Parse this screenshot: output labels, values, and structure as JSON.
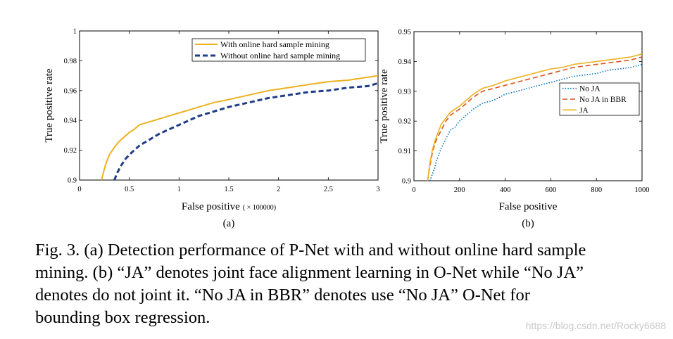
{
  "chart_data": [
    {
      "type": "line",
      "panel": "(a)",
      "xlabel": "False positive",
      "xlabel_unit": "( × 100000)",
      "ylabel": "True positive rate",
      "xlim": [
        0,
        3
      ],
      "ylim": [
        0.9,
        1
      ],
      "xticks": [
        "0",
        "0.5",
        "1",
        "1.5",
        "2",
        "2.5",
        "3"
      ],
      "yticks": [
        "0.9",
        "0.92",
        "0.94",
        "0.96",
        "0.98",
        "1"
      ],
      "legend_position": "top-right",
      "series": [
        {
          "name": "With online hard sample mining",
          "color": "#EDB120",
          "style": "solid",
          "x": [
            0.22,
            0.26,
            0.3,
            0.35,
            0.4,
            0.45,
            0.5,
            0.55,
            0.6,
            0.7,
            0.8,
            0.9,
            1.0,
            1.1,
            1.2,
            1.35,
            1.5,
            1.7,
            1.9,
            2.1,
            2.3,
            2.5,
            2.7,
            2.9,
            3.0
          ],
          "y": [
            0.9,
            0.91,
            0.917,
            0.922,
            0.926,
            0.929,
            0.932,
            0.934,
            0.937,
            0.939,
            0.941,
            0.943,
            0.945,
            0.947,
            0.949,
            0.952,
            0.954,
            0.957,
            0.96,
            0.962,
            0.964,
            0.966,
            0.967,
            0.969,
            0.97
          ]
        },
        {
          "name": "Without online hard sample mining",
          "color": "#1F3C88",
          "style": "dashed",
          "x": [
            0.35,
            0.38,
            0.42,
            0.46,
            0.5,
            0.55,
            0.6,
            0.7,
            0.8,
            0.9,
            1.0,
            1.1,
            1.2,
            1.35,
            1.5,
            1.7,
            1.9,
            2.1,
            2.3,
            2.5,
            2.7,
            2.9,
            3.0
          ],
          "y": [
            0.9,
            0.905,
            0.91,
            0.914,
            0.917,
            0.92,
            0.923,
            0.927,
            0.931,
            0.934,
            0.937,
            0.94,
            0.943,
            0.946,
            0.949,
            0.952,
            0.955,
            0.957,
            0.959,
            0.96,
            0.962,
            0.963,
            0.965
          ]
        }
      ]
    },
    {
      "type": "line",
      "panel": "(b)",
      "xlabel": "False positive",
      "ylabel": "True positive rate",
      "xlim": [
        0,
        1000
      ],
      "ylim": [
        0.9,
        0.95
      ],
      "xticks": [
        "0",
        "200",
        "400",
        "600",
        "800",
        "1000"
      ],
      "yticks": [
        "0.9",
        "0.91",
        "0.92",
        "0.93",
        "0.94",
        "0.95"
      ],
      "legend_position": "center-right",
      "series": [
        {
          "name": "No JA",
          "color": "#0072BD",
          "style": "dotted",
          "x": [
            70,
            80,
            90,
            100,
            120,
            140,
            160,
            180,
            200,
            230,
            260,
            300,
            350,
            400,
            450,
            500,
            550,
            600,
            650,
            700,
            750,
            800,
            850,
            900,
            950,
            1000
          ],
          "y": [
            0.9,
            0.902,
            0.904,
            0.907,
            0.911,
            0.914,
            0.917,
            0.918,
            0.92,
            0.922,
            0.924,
            0.926,
            0.927,
            0.929,
            0.93,
            0.931,
            0.932,
            0.933,
            0.934,
            0.935,
            0.9355,
            0.936,
            0.937,
            0.9375,
            0.938,
            0.939
          ]
        },
        {
          "name": "No JA in BBR",
          "color": "#D95319",
          "style": "dashed",
          "x": [
            60,
            70,
            80,
            90,
            100,
            120,
            140,
            160,
            180,
            200,
            230,
            260,
            300,
            350,
            400,
            450,
            500,
            550,
            600,
            650,
            700,
            750,
            800,
            850,
            900,
            950,
            1000
          ],
          "y": [
            0.9,
            0.905,
            0.909,
            0.912,
            0.914,
            0.917,
            0.92,
            0.922,
            0.923,
            0.924,
            0.926,
            0.928,
            0.93,
            0.931,
            0.932,
            0.933,
            0.934,
            0.935,
            0.936,
            0.937,
            0.938,
            0.9385,
            0.939,
            0.9395,
            0.94,
            0.9405,
            0.9415
          ]
        },
        {
          "name": "JA",
          "color": "#EDB120",
          "style": "solid",
          "x": [
            60,
            70,
            80,
            90,
            100,
            120,
            140,
            160,
            180,
            200,
            230,
            260,
            300,
            350,
            400,
            450,
            500,
            550,
            600,
            650,
            700,
            750,
            800,
            850,
            900,
            950,
            1000
          ],
          "y": [
            0.9,
            0.906,
            0.91,
            0.913,
            0.915,
            0.919,
            0.921,
            0.923,
            0.924,
            0.925,
            0.927,
            0.929,
            0.931,
            0.932,
            0.9335,
            0.9345,
            0.9355,
            0.9365,
            0.9375,
            0.938,
            0.939,
            0.9395,
            0.94,
            0.9405,
            0.941,
            0.9415,
            0.9425
          ]
        }
      ]
    }
  ],
  "caption": {
    "lines": [
      "Fig. 3. (a) Detection performance of P-Net with and without online hard sample",
      "mining. (b) “JA” denotes joint face alignment learning in O-Net while “No JA”",
      "denotes do not joint it. “No JA in BBR” denotes use “No JA” O-Net for",
      "bounding box regression."
    ]
  },
  "watermark": "https://blog.csdn.net/Rocky6688"
}
